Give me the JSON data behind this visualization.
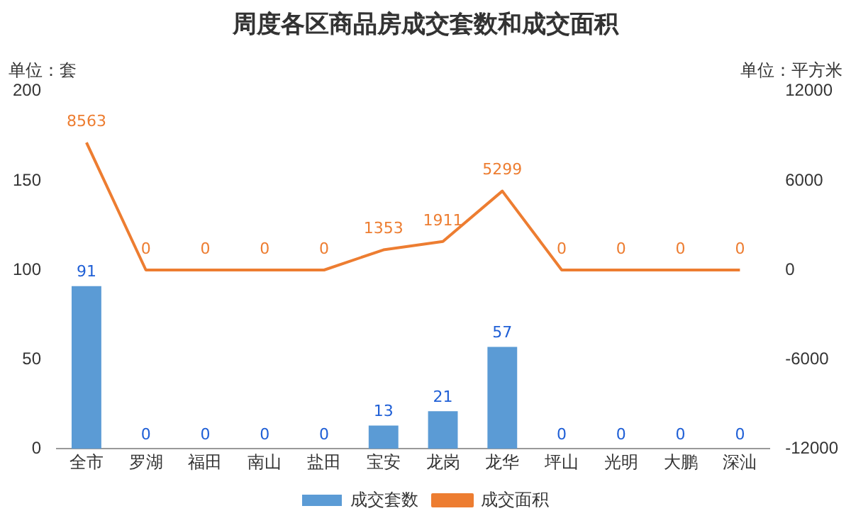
{
  "chart_data": {
    "type": "bar",
    "title": "周度各区商品房成交套数和成交面积",
    "ylabel": "单位：套",
    "y2label": "单位：平方米",
    "categories": [
      "全市",
      "罗湖",
      "福田",
      "南山",
      "盐田",
      "宝安",
      "龙岗",
      "龙华",
      "坪山",
      "光明",
      "大鹏",
      "深汕"
    ],
    "series": [
      {
        "name": "成交套数",
        "color": "#5b9bd5",
        "values": [
          91,
          0,
          0,
          0,
          0,
          13,
          21,
          57,
          0,
          0,
          0,
          0
        ]
      },
      {
        "name": "成交面积",
        "type": "line",
        "axis": "y2",
        "color": "#ed7d31",
        "values": [
          8563,
          0,
          0,
          0,
          0,
          1353,
          1911,
          5299,
          0,
          0,
          0,
          0
        ]
      }
    ],
    "ylim": [
      0,
      200
    ],
    "yticks": [
      0,
      50,
      100,
      150,
      200
    ],
    "y2lim": [
      -12000,
      12000
    ],
    "y2ticks": [
      -12000,
      -6000,
      0,
      6000,
      12000
    ],
    "grid": false,
    "legend": "bottom",
    "marker": "none",
    "data_labels": true
  }
}
